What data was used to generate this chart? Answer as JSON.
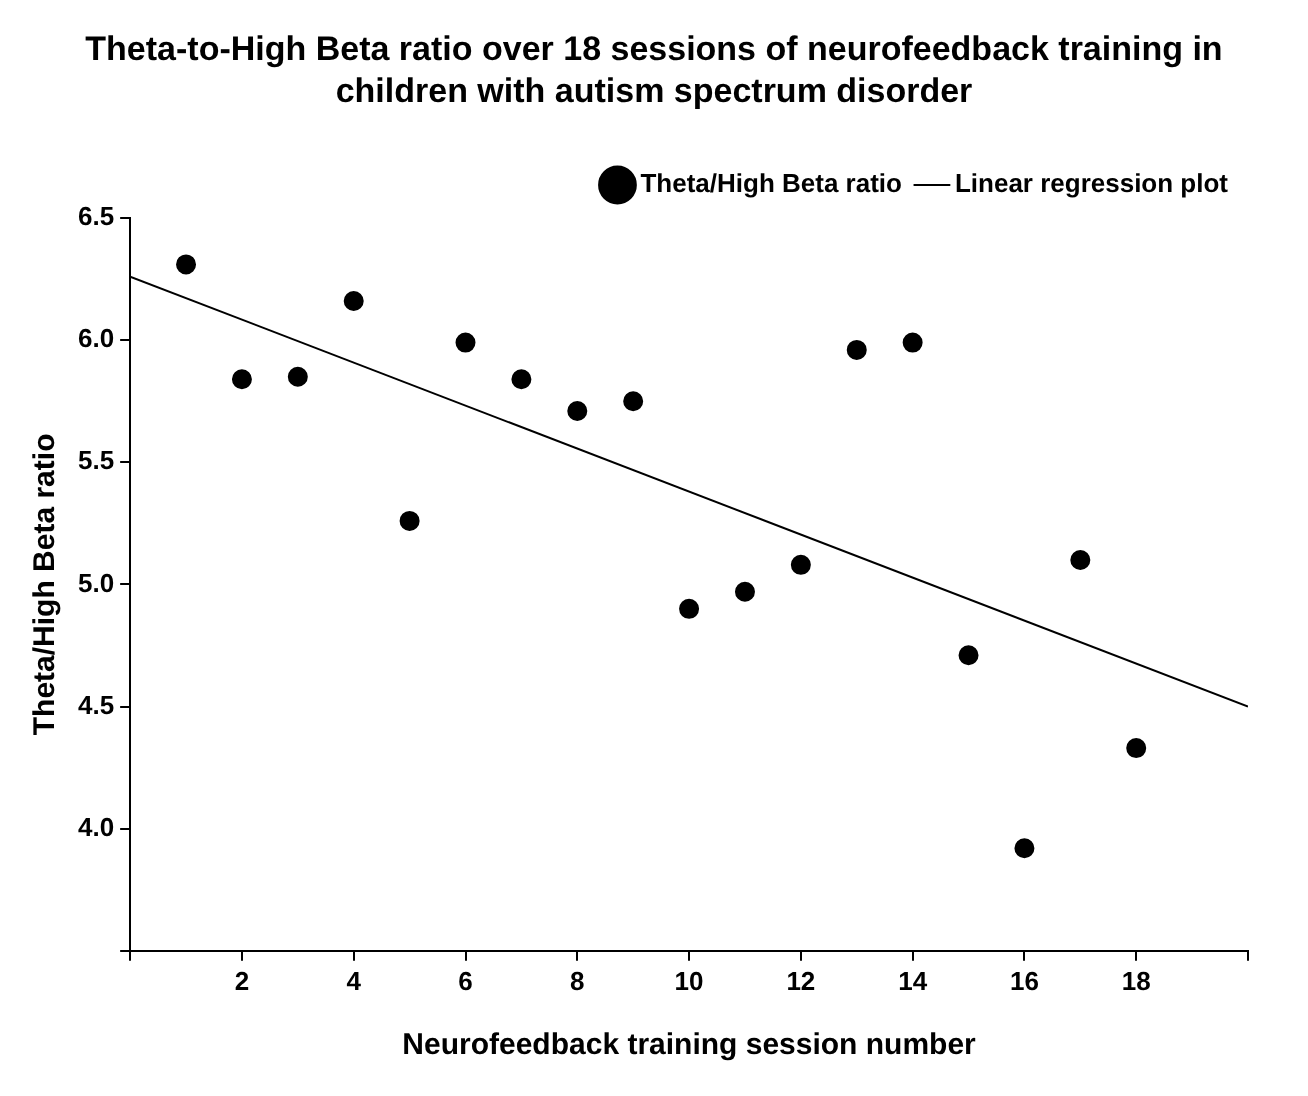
{
  "chart_data": {
    "type": "scatter",
    "title": "Theta-to-High Beta ratio over 18 sessions of neurofeedback training in children with autism spectrum disorder",
    "xlabel": "Neurofeedback training session number",
    "ylabel": "Theta/High Beta ratio",
    "x": [
      1,
      2,
      3,
      4,
      5,
      6,
      7,
      8,
      9,
      10,
      11,
      12,
      13,
      14,
      15,
      16,
      17,
      18
    ],
    "series": [
      {
        "name": "Theta/High Beta ratio",
        "color": "#000000",
        "type": "scatter",
        "marker": "circle",
        "values": [
          6.31,
          5.84,
          5.85,
          6.16,
          5.26,
          5.99,
          5.84,
          5.71,
          5.75,
          4.9,
          4.97,
          5.08,
          5.96,
          5.99,
          4.71,
          3.92,
          5.1,
          4.33
        ]
      },
      {
        "name": "Linear regression plot",
        "color": "#000000",
        "type": "line",
        "marker": "none",
        "line_style": "solid",
        "x": [
          0,
          20
        ],
        "values": [
          6.26,
          4.5
        ]
      }
    ],
    "xlim": [
      0,
      20
    ],
    "xticks": [
      {
        "value": 0,
        "label": null
      },
      2,
      4,
      6,
      8,
      10,
      12,
      14,
      16,
      18,
      {
        "value": 20,
        "label": null
      }
    ],
    "ylim": [
      3.5,
      6.5
    ],
    "yticks": [
      {
        "value": 3.5,
        "label": null
      },
      {
        "value": 4,
        "label": "4.0"
      },
      {
        "value": 4.5,
        "label": "4.5"
      },
      {
        "value": 5,
        "label": "5.0"
      },
      {
        "value": 5.5,
        "label": "5.5"
      },
      {
        "value": 6,
        "label": "6.0"
      },
      {
        "value": 6.5,
        "label": "6.5"
      }
    ],
    "grid": false,
    "legend": "top right"
  }
}
